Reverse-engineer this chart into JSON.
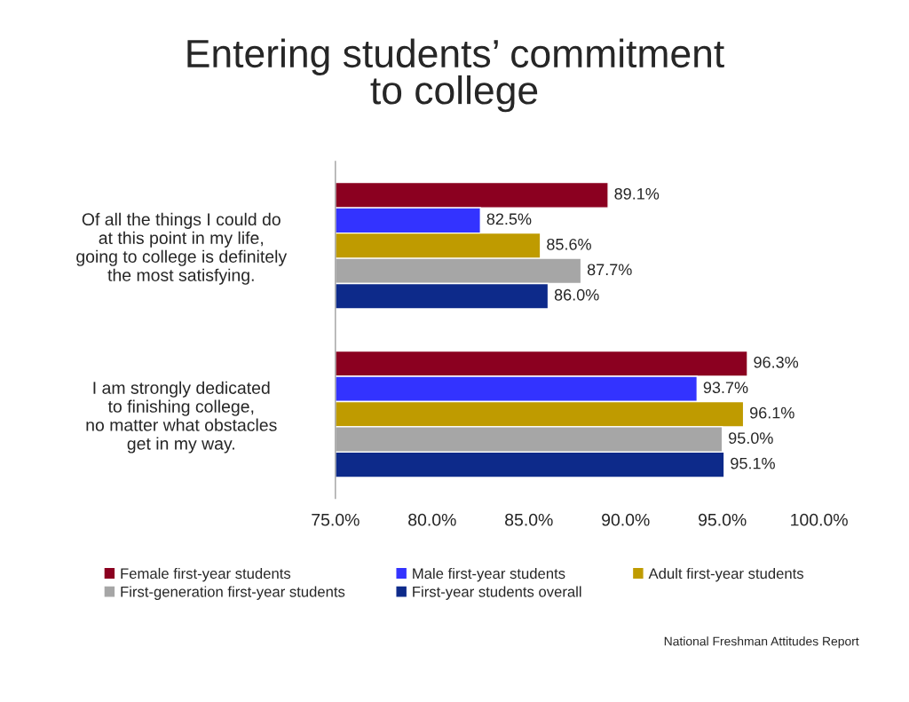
{
  "chart_data": {
    "type": "bar",
    "orientation": "horizontal",
    "title": "Entering students’ commitment\nto college",
    "categories": [
      "Of all the things I could do\nat this point in my life,\ngoing to college is definitely\nthe most satisfying.",
      "I am strongly dedicated\nto finishing college,\nno matter what obstacles\nget in my way."
    ],
    "series": [
      {
        "name": "Female first-year students",
        "color": "#8b0020",
        "values": [
          89.1,
          96.3
        ],
        "value_labels": [
          "89.1%",
          "96.3%"
        ]
      },
      {
        "name": "Male first-year students",
        "color": "#3333ff",
        "values": [
          82.5,
          93.7
        ],
        "value_labels": [
          "82.5%",
          "93.7%"
        ]
      },
      {
        "name": "Adult first-year students",
        "color": "#bf9b00",
        "values": [
          85.6,
          96.1
        ],
        "value_labels": [
          "85.6%",
          "96.1%"
        ]
      },
      {
        "name": "First-generation first-year students",
        "color": "#a6a6a6",
        "values": [
          87.7,
          95.0
        ],
        "value_labels": [
          "87.7%",
          "95.0%"
        ]
      },
      {
        "name": "First-year students overall",
        "color": "#0d2a8a",
        "values": [
          86.0,
          95.1
        ],
        "value_labels": [
          "86.0%",
          "95.1%"
        ]
      }
    ],
    "xlim": [
      75,
      100
    ],
    "xticks": [
      {
        "value": 75,
        "label": "75.0%"
      },
      {
        "value": 80,
        "label": "80.0%"
      },
      {
        "value": 85,
        "label": "85.0%"
      },
      {
        "value": 90,
        "label": "90.0%"
      },
      {
        "value": 95,
        "label": "95.0%"
      },
      {
        "value": 100,
        "label": "100.0%"
      }
    ],
    "grid": false,
    "legend": "bottom",
    "annotations": [
      "National Freshman Attitudes Report"
    ]
  }
}
